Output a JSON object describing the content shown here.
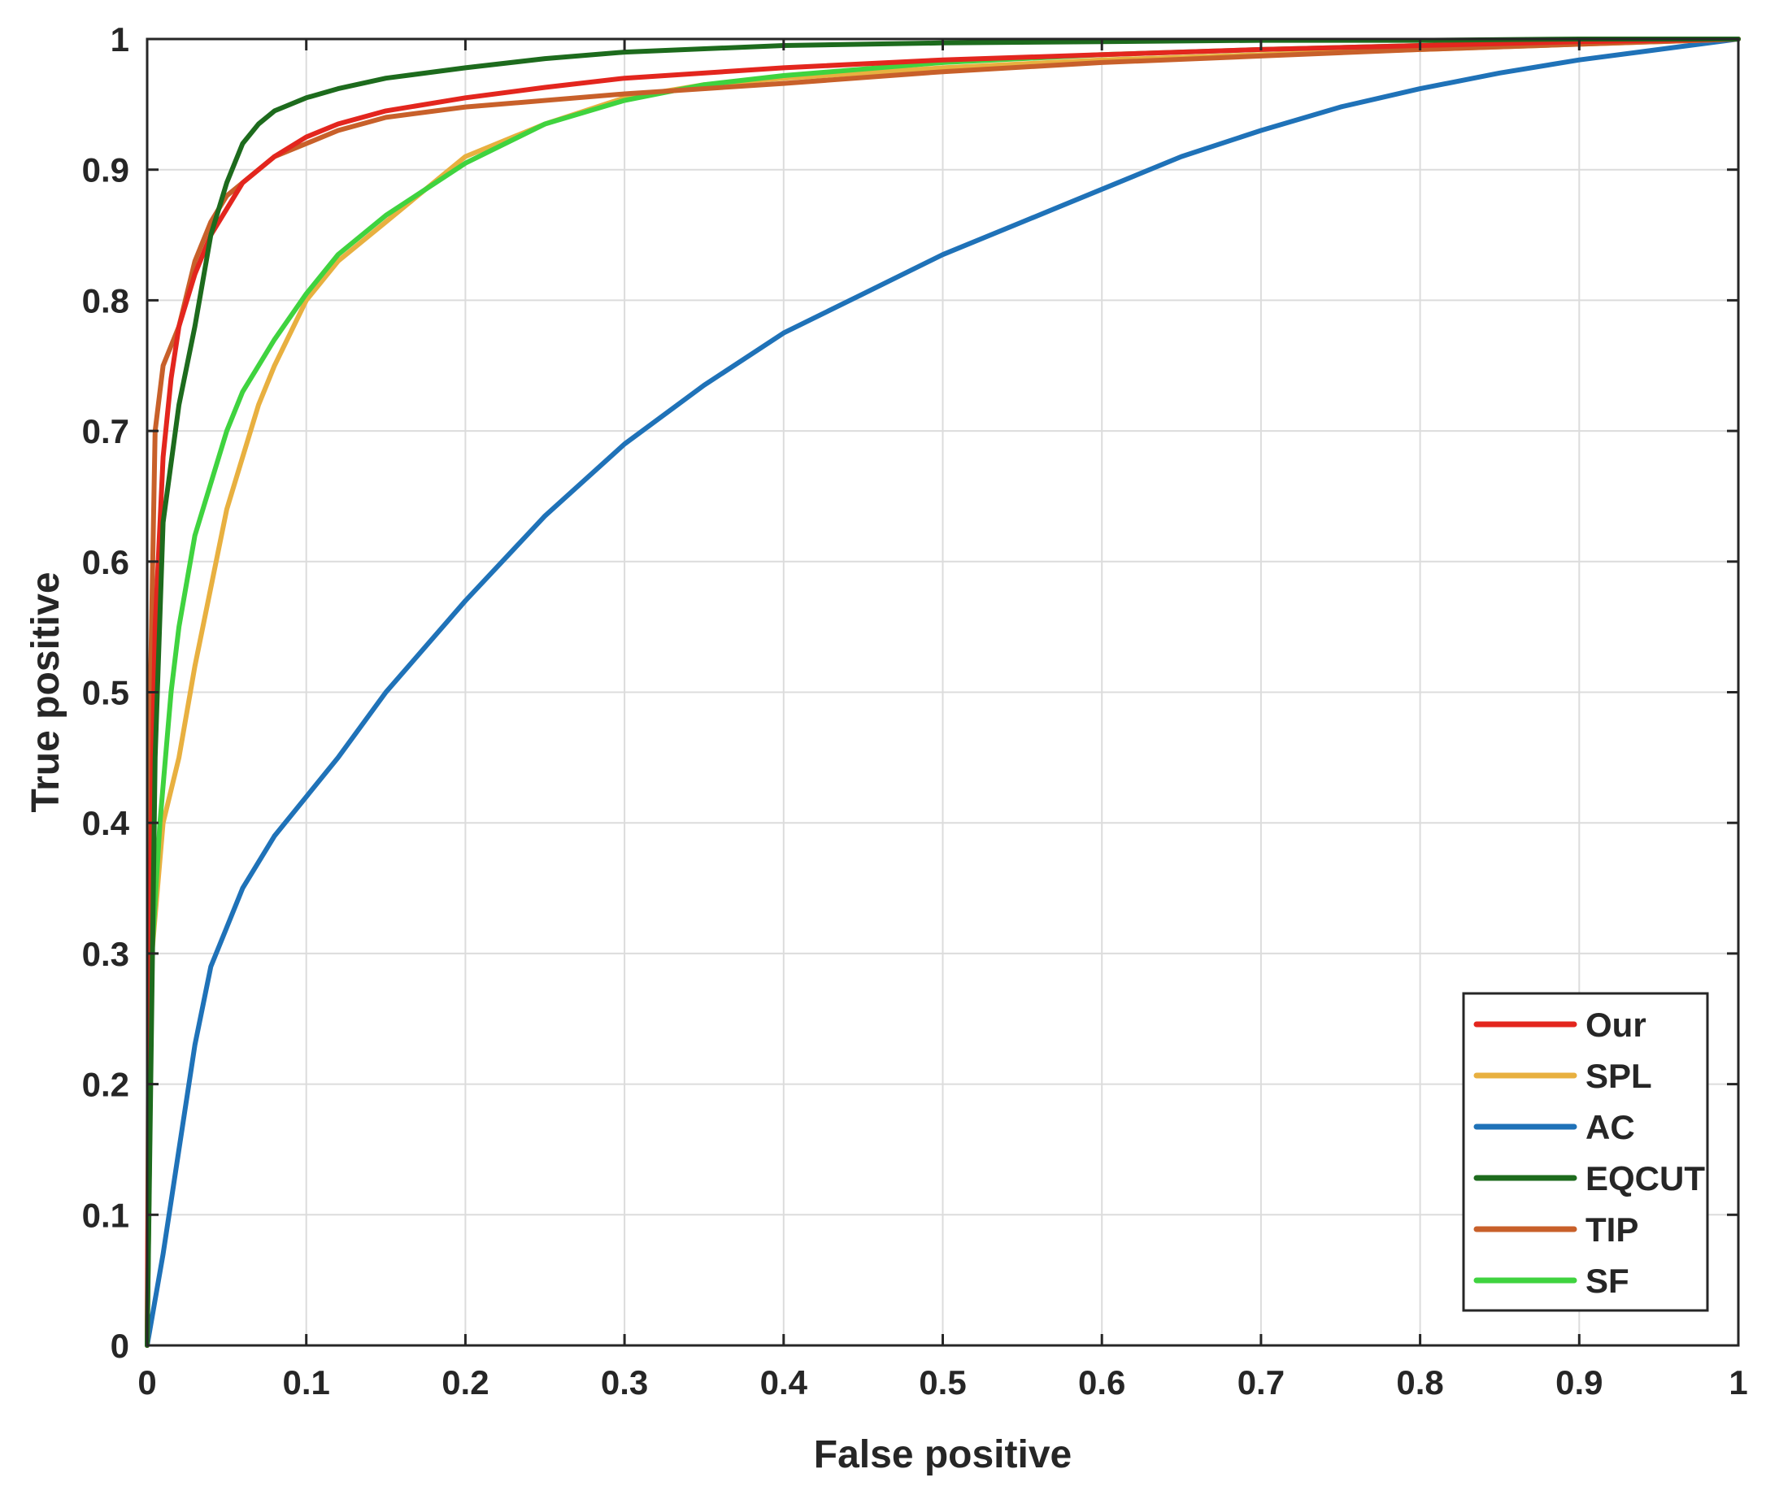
{
  "chart_data": {
    "type": "line",
    "xlabel": "False positive",
    "ylabel": "True positive",
    "xlim": [
      0,
      1
    ],
    "ylim": [
      0,
      1
    ],
    "grid": true,
    "legend_position": "bottom-right",
    "x_ticks": [
      "0",
      "0.1",
      "0.2",
      "0.3",
      "0.4",
      "0.5",
      "0.6",
      "0.7",
      "0.8",
      "0.9",
      "1"
    ],
    "y_ticks": [
      "0",
      "0.1",
      "0.2",
      "0.3",
      "0.4",
      "0.5",
      "0.6",
      "0.7",
      "0.8",
      "0.9",
      "1"
    ],
    "series": [
      {
        "name": "Our",
        "color": "#e3261e",
        "points": [
          [
            0,
            0
          ],
          [
            0.002,
            0.35
          ],
          [
            0.005,
            0.55
          ],
          [
            0.01,
            0.68
          ],
          [
            0.015,
            0.74
          ],
          [
            0.02,
            0.78
          ],
          [
            0.03,
            0.82
          ],
          [
            0.04,
            0.85
          ],
          [
            0.05,
            0.87
          ],
          [
            0.06,
            0.89
          ],
          [
            0.07,
            0.9
          ],
          [
            0.08,
            0.91
          ],
          [
            0.1,
            0.925
          ],
          [
            0.12,
            0.935
          ],
          [
            0.15,
            0.945
          ],
          [
            0.2,
            0.955
          ],
          [
            0.25,
            0.963
          ],
          [
            0.3,
            0.97
          ],
          [
            0.4,
            0.978
          ],
          [
            0.5,
            0.984
          ],
          [
            0.6,
            0.988
          ],
          [
            0.7,
            0.992
          ],
          [
            0.8,
            0.995
          ],
          [
            0.9,
            0.998
          ],
          [
            1,
            1
          ]
        ]
      },
      {
        "name": "SPL",
        "color": "#e8b040",
        "points": [
          [
            0,
            0
          ],
          [
            0.003,
            0.3
          ],
          [
            0.01,
            0.4
          ],
          [
            0.02,
            0.45
          ],
          [
            0.03,
            0.52
          ],
          [
            0.04,
            0.58
          ],
          [
            0.05,
            0.64
          ],
          [
            0.06,
            0.68
          ],
          [
            0.07,
            0.72
          ],
          [
            0.08,
            0.75
          ],
          [
            0.1,
            0.8
          ],
          [
            0.12,
            0.83
          ],
          [
            0.15,
            0.86
          ],
          [
            0.2,
            0.91
          ],
          [
            0.25,
            0.935
          ],
          [
            0.3,
            0.955
          ],
          [
            0.35,
            0.965
          ],
          [
            0.4,
            0.97
          ],
          [
            0.5,
            0.978
          ],
          [
            0.6,
            0.984
          ],
          [
            0.7,
            0.988
          ],
          [
            0.8,
            0.992
          ],
          [
            0.9,
            0.996
          ],
          [
            1,
            1
          ]
        ]
      },
      {
        "name": "AC",
        "color": "#1f72b8",
        "points": [
          [
            0,
            0
          ],
          [
            0.01,
            0.07
          ],
          [
            0.02,
            0.15
          ],
          [
            0.03,
            0.23
          ],
          [
            0.04,
            0.29
          ],
          [
            0.05,
            0.32
          ],
          [
            0.06,
            0.35
          ],
          [
            0.07,
            0.37
          ],
          [
            0.08,
            0.39
          ],
          [
            0.1,
            0.42
          ],
          [
            0.12,
            0.45
          ],
          [
            0.15,
            0.5
          ],
          [
            0.2,
            0.57
          ],
          [
            0.25,
            0.635
          ],
          [
            0.3,
            0.69
          ],
          [
            0.35,
            0.735
          ],
          [
            0.4,
            0.775
          ],
          [
            0.45,
            0.805
          ],
          [
            0.5,
            0.835
          ],
          [
            0.55,
            0.86
          ],
          [
            0.6,
            0.885
          ],
          [
            0.65,
            0.91
          ],
          [
            0.7,
            0.93
          ],
          [
            0.75,
            0.948
          ],
          [
            0.8,
            0.962
          ],
          [
            0.85,
            0.974
          ],
          [
            0.9,
            0.984
          ],
          [
            0.95,
            0.992
          ],
          [
            1,
            1
          ]
        ]
      },
      {
        "name": "EQCUT",
        "color": "#1d6b1d",
        "points": [
          [
            0,
            0
          ],
          [
            0.005,
            0.45
          ],
          [
            0.01,
            0.63
          ],
          [
            0.02,
            0.72
          ],
          [
            0.03,
            0.78
          ],
          [
            0.04,
            0.85
          ],
          [
            0.05,
            0.89
          ],
          [
            0.06,
            0.92
          ],
          [
            0.07,
            0.935
          ],
          [
            0.08,
            0.945
          ],
          [
            0.1,
            0.955
          ],
          [
            0.12,
            0.962
          ],
          [
            0.15,
            0.97
          ],
          [
            0.2,
            0.978
          ],
          [
            0.25,
            0.985
          ],
          [
            0.3,
            0.99
          ],
          [
            0.4,
            0.995
          ],
          [
            0.5,
            0.997
          ],
          [
            0.6,
            0.998
          ],
          [
            0.7,
            0.999
          ],
          [
            0.8,
            0.999
          ],
          [
            0.9,
            1
          ],
          [
            1,
            1
          ]
        ]
      },
      {
        "name": "TIP",
        "color": "#c8602a",
        "points": [
          [
            0,
            0
          ],
          [
            0.002,
            0.5
          ],
          [
            0.005,
            0.7
          ],
          [
            0.01,
            0.75
          ],
          [
            0.02,
            0.78
          ],
          [
            0.03,
            0.83
          ],
          [
            0.04,
            0.86
          ],
          [
            0.05,
            0.88
          ],
          [
            0.06,
            0.89
          ],
          [
            0.07,
            0.9
          ],
          [
            0.08,
            0.91
          ],
          [
            0.1,
            0.92
          ],
          [
            0.12,
            0.93
          ],
          [
            0.15,
            0.94
          ],
          [
            0.2,
            0.948
          ],
          [
            0.3,
            0.958
          ],
          [
            0.4,
            0.966
          ],
          [
            0.5,
            0.975
          ],
          [
            0.6,
            0.982
          ],
          [
            0.7,
            0.987
          ],
          [
            0.8,
            0.992
          ],
          [
            0.9,
            0.996
          ],
          [
            1,
            1
          ]
        ]
      },
      {
        "name": "SF",
        "color": "#3fd33f",
        "points": [
          [
            0,
            0
          ],
          [
            0.003,
            0.3
          ],
          [
            0.008,
            0.4
          ],
          [
            0.015,
            0.5
          ],
          [
            0.02,
            0.55
          ],
          [
            0.03,
            0.62
          ],
          [
            0.04,
            0.66
          ],
          [
            0.05,
            0.7
          ],
          [
            0.06,
            0.73
          ],
          [
            0.07,
            0.75
          ],
          [
            0.08,
            0.77
          ],
          [
            0.1,
            0.805
          ],
          [
            0.12,
            0.835
          ],
          [
            0.15,
            0.865
          ],
          [
            0.2,
            0.905
          ],
          [
            0.25,
            0.935
          ],
          [
            0.3,
            0.953
          ],
          [
            0.35,
            0.965
          ],
          [
            0.4,
            0.972
          ],
          [
            0.5,
            0.982
          ],
          [
            0.6,
            0.988
          ],
          [
            0.7,
            0.992
          ],
          [
            0.8,
            0.995
          ],
          [
            0.9,
            0.998
          ],
          [
            1,
            1
          ]
        ]
      }
    ]
  }
}
